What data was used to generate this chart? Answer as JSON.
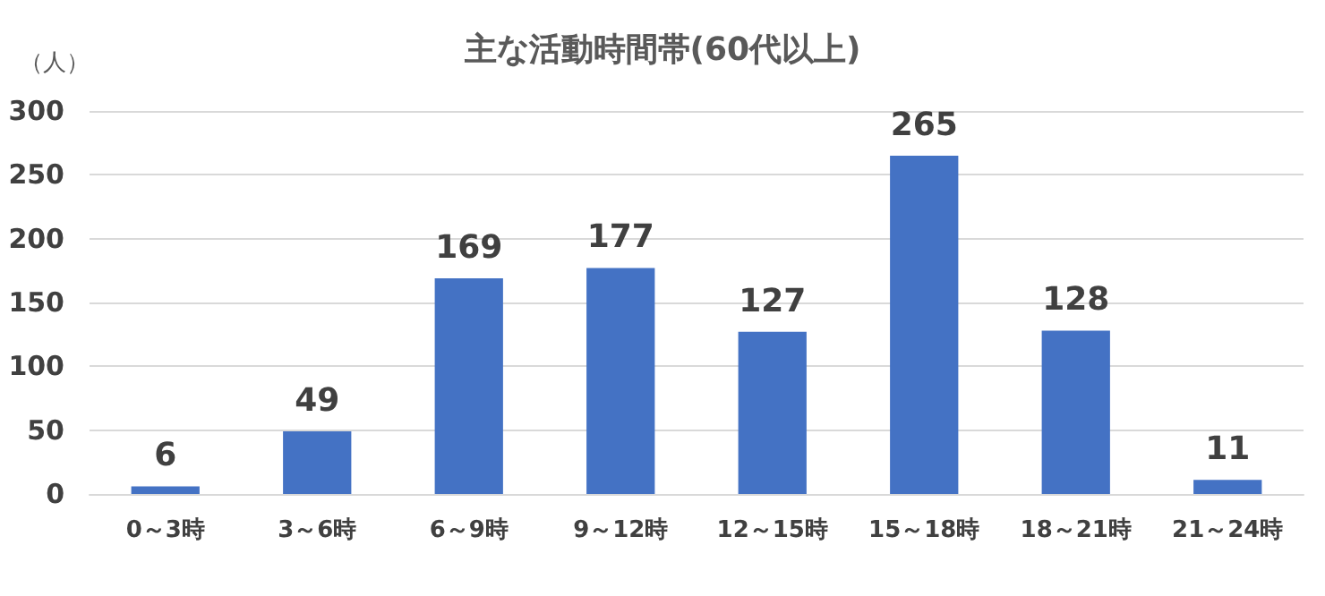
{
  "chart_data": {
    "type": "bar",
    "title": "主な活動時間帯(60代以上)",
    "ylabel": "（人）",
    "categories": [
      "0～3時",
      "3～6時",
      "6～9時",
      "9～12時",
      "12～15時",
      "15～18時",
      "18～21時",
      "21～24時"
    ],
    "values": [
      6,
      49,
      169,
      177,
      127,
      265,
      128,
      11
    ],
    "color": "#4472c4",
    "ylim": [
      0,
      300
    ],
    "yticks": [
      0,
      50,
      100,
      150,
      200,
      250,
      300
    ],
    "grid": "y",
    "data_labels": true
  }
}
